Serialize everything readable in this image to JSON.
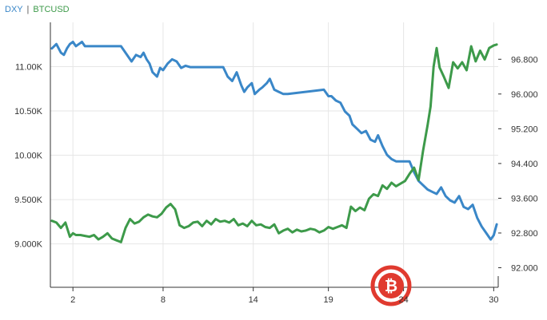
{
  "chart_data": {
    "type": "line",
    "title": "",
    "legend": {
      "placement": "top-left",
      "separator": "|",
      "entries": [
        "DXY",
        "BTCUSD"
      ]
    },
    "x": {
      "tick_labels": [
        "2",
        "8",
        "14",
        "19",
        "24",
        "30"
      ],
      "tick_days": [
        2,
        8,
        14,
        19,
        24,
        30
      ],
      "range": [
        0.5,
        30.3
      ]
    },
    "y_left": {
      "tick_labels": [
        "11.00K",
        "10.50K",
        "10.00K",
        "9.500K",
        "9.000K"
      ],
      "tick_values": [
        11000,
        10500,
        10000,
        9500,
        9000
      ],
      "range": [
        8510,
        11500
      ],
      "grid": true
    },
    "y_right": {
      "tick_labels": [
        "96.800",
        "96.000",
        "95.200",
        "94.400",
        "93.600",
        "92.800",
        "92.000"
      ],
      "tick_values": [
        96.8,
        96.0,
        95.2,
        94.4,
        93.6,
        92.8,
        92.0
      ],
      "range": [
        91.55,
        97.65
      ]
    },
    "series": [
      {
        "name": "DXY",
        "axis": "right",
        "color": "#3a87c8",
        "x": [
          0.6,
          0.9,
          1.2,
          1.4,
          1.6,
          1.8,
          2.0,
          2.2,
          2.4,
          2.6,
          2.8,
          3.0,
          3.3,
          5.2,
          5.5,
          5.7,
          5.9,
          6.2,
          6.5,
          6.7,
          6.9,
          7.1,
          7.3,
          7.6,
          7.8,
          8.0,
          8.3,
          8.6,
          8.9,
          9.2,
          9.5,
          9.8,
          12.0,
          12.3,
          12.6,
          12.9,
          13.2,
          13.4,
          13.6,
          13.9,
          14.1,
          14.4,
          14.6,
          14.9,
          15.1,
          15.4,
          15.7,
          16.0,
          16.3,
          18.7,
          19.0,
          19.2,
          19.5,
          19.8,
          20.1,
          20.4,
          20.6,
          20.9,
          21.2,
          21.5,
          21.8,
          22.1,
          22.3,
          22.6,
          22.9,
          23.2,
          23.5,
          23.8,
          24.4,
          24.7,
          25.0,
          25.3,
          25.6,
          25.9,
          26.2,
          26.5,
          26.8,
          27.1,
          27.4,
          27.7,
          28.0,
          28.3,
          28.6,
          28.9,
          29.2,
          29.5,
          29.8,
          30.0,
          30.2
        ],
        "values": [
          97.05,
          97.15,
          96.95,
          96.9,
          97.05,
          97.15,
          97.2,
          97.1,
          97.15,
          97.2,
          97.1,
          97.1,
          97.1,
          97.1,
          96.95,
          96.85,
          96.75,
          96.9,
          96.85,
          96.95,
          96.8,
          96.7,
          96.5,
          96.4,
          96.6,
          96.55,
          96.7,
          96.8,
          96.75,
          96.6,
          96.65,
          96.62,
          96.62,
          96.4,
          96.3,
          96.5,
          96.2,
          96.05,
          96.15,
          96.25,
          96.0,
          96.1,
          96.15,
          96.25,
          96.35,
          96.1,
          96.05,
          96.0,
          96.0,
          96.1,
          95.95,
          95.95,
          95.85,
          95.8,
          95.6,
          95.5,
          95.3,
          95.2,
          95.1,
          95.15,
          94.95,
          94.9,
          95.05,
          94.8,
          94.6,
          94.5,
          94.45,
          94.45,
          94.45,
          94.2,
          94.0,
          93.9,
          93.8,
          93.75,
          93.7,
          93.85,
          93.65,
          93.55,
          93.5,
          93.65,
          93.4,
          93.35,
          93.45,
          93.15,
          92.95,
          92.8,
          92.65,
          92.75,
          93.0
        ]
      },
      {
        "name": "BTCUSD",
        "axis": "left",
        "color": "#3d9a4a",
        "x": [
          0.6,
          0.9,
          1.2,
          1.5,
          1.8,
          2.0,
          2.2,
          2.5,
          2.8,
          3.1,
          3.4,
          3.7,
          4.0,
          4.3,
          4.6,
          4.9,
          5.2,
          5.5,
          5.8,
          6.1,
          6.4,
          6.7,
          7.0,
          7.3,
          7.6,
          7.9,
          8.2,
          8.5,
          8.8,
          9.1,
          9.4,
          9.7,
          10.0,
          10.3,
          10.6,
          10.9,
          11.2,
          11.5,
          11.8,
          12.1,
          12.4,
          12.7,
          13.0,
          13.3,
          13.6,
          13.9,
          14.2,
          14.5,
          14.8,
          15.1,
          15.4,
          15.7,
          16.0,
          16.3,
          16.6,
          16.9,
          17.2,
          17.5,
          17.8,
          18.1,
          18.4,
          18.7,
          19.0,
          19.3,
          19.6,
          19.9,
          20.2,
          20.5,
          20.8,
          21.1,
          21.4,
          21.7,
          22.0,
          22.3,
          22.6,
          22.9,
          23.2,
          23.5,
          23.8,
          24.1,
          24.4,
          24.7,
          25.0,
          25.3,
          25.6,
          25.8,
          26.0,
          26.2,
          26.4,
          26.7,
          27.0,
          27.3,
          27.6,
          27.9,
          28.2,
          28.5,
          28.8,
          29.1,
          29.4,
          29.7,
          30.0,
          30.2
        ],
        "values": [
          9260,
          9240,
          9180,
          9240,
          9080,
          9120,
          9100,
          9100,
          9090,
          9080,
          9100,
          9050,
          9080,
          9120,
          9060,
          9040,
          9020,
          9180,
          9280,
          9230,
          9250,
          9300,
          9330,
          9310,
          9300,
          9340,
          9410,
          9450,
          9390,
          9210,
          9180,
          9200,
          9240,
          9250,
          9200,
          9260,
          9220,
          9280,
          9250,
          9260,
          9240,
          9280,
          9210,
          9230,
          9200,
          9260,
          9210,
          9220,
          9190,
          9180,
          9220,
          9120,
          9150,
          9170,
          9130,
          9160,
          9140,
          9150,
          9170,
          9160,
          9130,
          9150,
          9190,
          9170,
          9190,
          9210,
          9180,
          9420,
          9370,
          9410,
          9380,
          9510,
          9560,
          9540,
          9660,
          9620,
          9690,
          9650,
          9680,
          9710,
          9790,
          9860,
          9720,
          10050,
          10340,
          10550,
          11000,
          11210,
          10990,
          10880,
          10760,
          11050,
          10980,
          11050,
          10960,
          11230,
          11060,
          11180,
          11080,
          11210,
          11240,
          11250
        ]
      }
    ]
  },
  "watermark": {
    "kind": "bitcoin-logo",
    "glyph": "₿",
    "color": "#e03a2f"
  }
}
